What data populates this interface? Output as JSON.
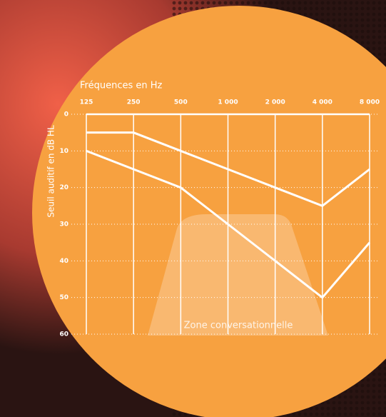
{
  "chart_data": {
    "type": "line",
    "title": "Fréquences en Hz",
    "y_label": "Seuil auditif en dB HL",
    "annotation": "Zone conversationnelle",
    "categories": [
      "125",
      "250",
      "500",
      "1 000",
      "2 000",
      "4 000",
      "8 000"
    ],
    "series": [
      {
        "color": "#ffffff",
        "values": [
          5,
          5,
          10,
          15,
          20,
          25,
          15
        ]
      },
      {
        "color": "#ffffff",
        "values": [
          10,
          15,
          20,
          30,
          40,
          50,
          35
        ]
      }
    ],
    "ylim": [
      0,
      60
    ],
    "yticks": [
      0,
      10,
      20,
      30,
      40,
      50,
      60
    ],
    "y_inverted": true,
    "grid": true
  }
}
